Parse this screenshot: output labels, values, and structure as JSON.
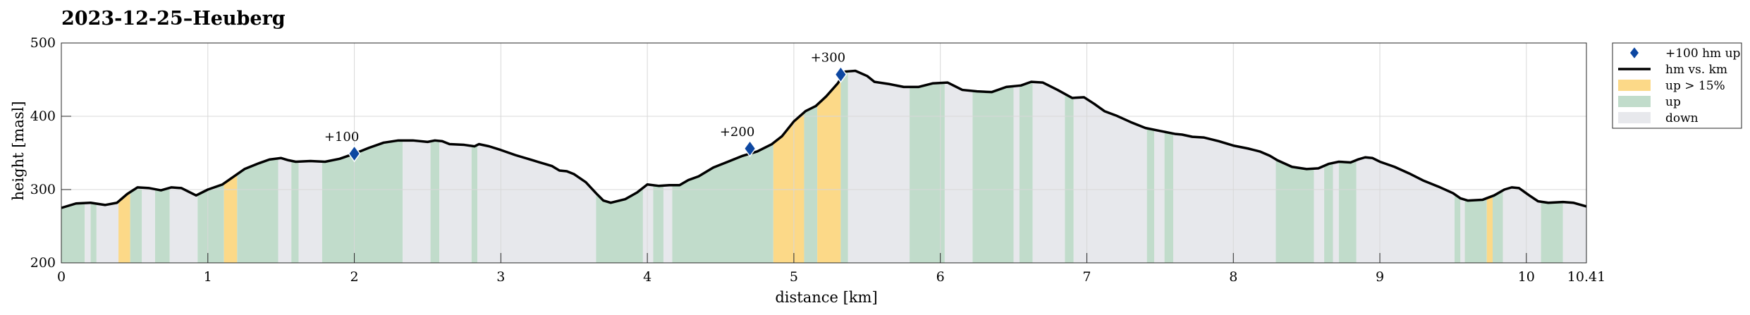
{
  "chart_data": {
    "type": "area",
    "title": "2023-12-25–Heuberg",
    "xlabel": "distance [km]",
    "ylabel": "height [masl]",
    "xlim": [
      0,
      10.41
    ],
    "ylim": [
      200,
      500
    ],
    "xticks": [
      0,
      1,
      2,
      3,
      4,
      5,
      6,
      7,
      8,
      9,
      10,
      10.41
    ],
    "yticks": [
      200,
      300,
      400,
      500
    ],
    "grid": true,
    "legend_position": "outside-top-right",
    "colors": {
      "line": "#000000",
      "marker": "#0d47a1",
      "steep": "#fcd988",
      "up": "#c1dccb",
      "down": "#e7e8ec"
    },
    "legend": [
      {
        "label": "+100 hm up",
        "kind": "marker"
      },
      {
        "label": "hm vs. km",
        "kind": "line"
      },
      {
        "label": "up > 15%",
        "kind": "steep"
      },
      {
        "label": "up",
        "kind": "up"
      },
      {
        "label": "down",
        "kind": "down"
      }
    ],
    "series": [
      {
        "label": "hm vs. km",
        "points": [
          [
            0,
            275
          ],
          [
            0.1,
            281
          ],
          [
            0.2,
            282
          ],
          [
            0.3,
            279
          ],
          [
            0.38,
            282
          ],
          [
            0.45,
            294
          ],
          [
            0.52,
            303
          ],
          [
            0.6,
            302
          ],
          [
            0.68,
            299
          ],
          [
            0.75,
            303
          ],
          [
            0.82,
            302
          ],
          [
            0.88,
            296
          ],
          [
            0.92,
            292
          ],
          [
            1.0,
            300
          ],
          [
            1.1,
            307
          ],
          [
            1.15,
            314
          ],
          [
            1.25,
            328
          ],
          [
            1.35,
            336
          ],
          [
            1.42,
            341
          ],
          [
            1.5,
            343
          ],
          [
            1.55,
            340
          ],
          [
            1.6,
            338
          ],
          [
            1.7,
            339
          ],
          [
            1.8,
            338
          ],
          [
            1.9,
            342
          ],
          [
            2.0,
            349
          ],
          [
            2.1,
            357
          ],
          [
            2.2,
            364
          ],
          [
            2.3,
            367
          ],
          [
            2.4,
            367
          ],
          [
            2.5,
            365
          ],
          [
            2.55,
            367
          ],
          [
            2.6,
            366
          ],
          [
            2.65,
            362
          ],
          [
            2.75,
            361
          ],
          [
            2.82,
            359
          ],
          [
            2.85,
            362
          ],
          [
            2.92,
            359
          ],
          [
            3.0,
            354
          ],
          [
            3.1,
            347
          ],
          [
            3.2,
            341
          ],
          [
            3.3,
            335
          ],
          [
            3.35,
            332
          ],
          [
            3.4,
            326
          ],
          [
            3.45,
            325
          ],
          [
            3.5,
            321
          ],
          [
            3.58,
            310
          ],
          [
            3.65,
            295
          ],
          [
            3.7,
            285
          ],
          [
            3.75,
            282
          ],
          [
            3.85,
            287
          ],
          [
            3.93,
            296
          ],
          [
            4.0,
            307
          ],
          [
            4.08,
            305
          ],
          [
            4.15,
            306
          ],
          [
            4.22,
            306
          ],
          [
            4.28,
            313
          ],
          [
            4.35,
            318
          ],
          [
            4.45,
            330
          ],
          [
            4.55,
            338
          ],
          [
            4.65,
            346
          ],
          [
            4.75,
            352
          ],
          [
            4.85,
            362
          ],
          [
            4.92,
            373
          ],
          [
            5.0,
            393
          ],
          [
            5.08,
            407
          ],
          [
            5.15,
            414
          ],
          [
            5.22,
            427
          ],
          [
            5.3,
            445
          ],
          [
            5.35,
            461
          ],
          [
            5.42,
            462
          ],
          [
            5.5,
            455
          ],
          [
            5.55,
            447
          ],
          [
            5.65,
            444
          ],
          [
            5.75,
            440
          ],
          [
            5.85,
            440
          ],
          [
            5.95,
            445
          ],
          [
            6.05,
            446
          ],
          [
            6.15,
            436
          ],
          [
            6.25,
            434
          ],
          [
            6.35,
            433
          ],
          [
            6.45,
            440
          ],
          [
            6.55,
            442
          ],
          [
            6.62,
            447
          ],
          [
            6.7,
            446
          ],
          [
            6.8,
            436
          ],
          [
            6.9,
            425
          ],
          [
            6.98,
            426
          ],
          [
            7.05,
            417
          ],
          [
            7.12,
            407
          ],
          [
            7.2,
            401
          ],
          [
            7.3,
            392
          ],
          [
            7.4,
            384
          ],
          [
            7.5,
            380
          ],
          [
            7.6,
            376
          ],
          [
            7.65,
            375
          ],
          [
            7.72,
            372
          ],
          [
            7.8,
            371
          ],
          [
            7.9,
            366
          ],
          [
            8.0,
            360
          ],
          [
            8.1,
            356
          ],
          [
            8.18,
            352
          ],
          [
            8.25,
            346
          ],
          [
            8.3,
            340
          ],
          [
            8.4,
            331
          ],
          [
            8.5,
            328
          ],
          [
            8.58,
            329
          ],
          [
            8.65,
            335
          ],
          [
            8.72,
            338
          ],
          [
            8.8,
            337
          ],
          [
            8.85,
            341
          ],
          [
            8.9,
            344
          ],
          [
            8.95,
            343
          ],
          [
            9.0,
            338
          ],
          [
            9.1,
            331
          ],
          [
            9.2,
            322
          ],
          [
            9.3,
            312
          ],
          [
            9.4,
            304
          ],
          [
            9.5,
            295
          ],
          [
            9.55,
            288
          ],
          [
            9.6,
            285
          ],
          [
            9.7,
            286
          ],
          [
            9.78,
            292
          ],
          [
            9.85,
            300
          ],
          [
            9.9,
            303
          ],
          [
            9.95,
            302
          ],
          [
            10.02,
            292
          ],
          [
            10.08,
            284
          ],
          [
            10.15,
            282
          ],
          [
            10.25,
            283
          ],
          [
            10.32,
            282
          ],
          [
            10.41,
            277
          ]
        ]
      }
    ],
    "bands": [
      {
        "x0": 0,
        "x1": 0.16,
        "kind": "up"
      },
      {
        "x0": 0.16,
        "x1": 0.2,
        "kind": "down"
      },
      {
        "x0": 0.2,
        "x1": 0.24,
        "kind": "up"
      },
      {
        "x0": 0.24,
        "x1": 0.39,
        "kind": "down"
      },
      {
        "x0": 0.39,
        "x1": 0.47,
        "kind": "steep"
      },
      {
        "x0": 0.47,
        "x1": 0.55,
        "kind": "up"
      },
      {
        "x0": 0.55,
        "x1": 0.64,
        "kind": "down"
      },
      {
        "x0": 0.64,
        "x1": 0.74,
        "kind": "up"
      },
      {
        "x0": 0.74,
        "x1": 0.93,
        "kind": "down"
      },
      {
        "x0": 0.93,
        "x1": 1.11,
        "kind": "up"
      },
      {
        "x0": 1.11,
        "x1": 1.2,
        "kind": "steep"
      },
      {
        "x0": 1.2,
        "x1": 1.48,
        "kind": "up"
      },
      {
        "x0": 1.48,
        "x1": 1.57,
        "kind": "down"
      },
      {
        "x0": 1.57,
        "x1": 1.62,
        "kind": "up"
      },
      {
        "x0": 1.62,
        "x1": 1.78,
        "kind": "down"
      },
      {
        "x0": 1.78,
        "x1": 2.33,
        "kind": "up"
      },
      {
        "x0": 2.33,
        "x1": 2.52,
        "kind": "down"
      },
      {
        "x0": 2.52,
        "x1": 2.58,
        "kind": "up"
      },
      {
        "x0": 2.58,
        "x1": 2.8,
        "kind": "down"
      },
      {
        "x0": 2.8,
        "x1": 2.84,
        "kind": "up"
      },
      {
        "x0": 2.84,
        "x1": 3.65,
        "kind": "down"
      },
      {
        "x0": 3.65,
        "x1": 3.97,
        "kind": "up"
      },
      {
        "x0": 3.97,
        "x1": 4.04,
        "kind": "down"
      },
      {
        "x0": 4.04,
        "x1": 4.11,
        "kind": "up"
      },
      {
        "x0": 4.11,
        "x1": 4.17,
        "kind": "down"
      },
      {
        "x0": 4.17,
        "x1": 4.86,
        "kind": "up"
      },
      {
        "x0": 4.86,
        "x1": 5.07,
        "kind": "steep"
      },
      {
        "x0": 5.07,
        "x1": 5.16,
        "kind": "up"
      },
      {
        "x0": 5.16,
        "x1": 5.32,
        "kind": "steep"
      },
      {
        "x0": 5.32,
        "x1": 5.37,
        "kind": "up"
      },
      {
        "x0": 5.37,
        "x1": 5.79,
        "kind": "down"
      },
      {
        "x0": 5.79,
        "x1": 6.03,
        "kind": "up"
      },
      {
        "x0": 6.03,
        "x1": 6.22,
        "kind": "down"
      },
      {
        "x0": 6.22,
        "x1": 6.5,
        "kind": "up"
      },
      {
        "x0": 6.5,
        "x1": 6.54,
        "kind": "down"
      },
      {
        "x0": 6.54,
        "x1": 6.63,
        "kind": "up"
      },
      {
        "x0": 6.63,
        "x1": 6.85,
        "kind": "down"
      },
      {
        "x0": 6.85,
        "x1": 6.91,
        "kind": "up"
      },
      {
        "x0": 6.91,
        "x1": 7.41,
        "kind": "down"
      },
      {
        "x0": 7.41,
        "x1": 7.46,
        "kind": "up"
      },
      {
        "x0": 7.46,
        "x1": 7.53,
        "kind": "down"
      },
      {
        "x0": 7.53,
        "x1": 7.59,
        "kind": "up"
      },
      {
        "x0": 7.59,
        "x1": 8.29,
        "kind": "down"
      },
      {
        "x0": 8.29,
        "x1": 8.55,
        "kind": "up"
      },
      {
        "x0": 8.55,
        "x1": 8.62,
        "kind": "down"
      },
      {
        "x0": 8.62,
        "x1": 8.68,
        "kind": "up"
      },
      {
        "x0": 8.68,
        "x1": 8.72,
        "kind": "down"
      },
      {
        "x0": 8.72,
        "x1": 8.84,
        "kind": "up"
      },
      {
        "x0": 8.84,
        "x1": 9.51,
        "kind": "down"
      },
      {
        "x0": 9.51,
        "x1": 9.55,
        "kind": "up"
      },
      {
        "x0": 9.55,
        "x1": 9.58,
        "kind": "down"
      },
      {
        "x0": 9.58,
        "x1": 9.73,
        "kind": "up"
      },
      {
        "x0": 9.73,
        "x1": 9.77,
        "kind": "steep"
      },
      {
        "x0": 9.77,
        "x1": 9.84,
        "kind": "up"
      },
      {
        "x0": 9.84,
        "x1": 10.1,
        "kind": "down"
      },
      {
        "x0": 10.1,
        "x1": 10.25,
        "kind": "up"
      },
      {
        "x0": 10.25,
        "x1": 10.41,
        "kind": "down"
      }
    ],
    "markers": [
      {
        "x": 2.0,
        "y": 349,
        "label": "+100"
      },
      {
        "x": 4.7,
        "y": 356,
        "label": "+200"
      },
      {
        "x": 5.32,
        "y": 457,
        "label": "+300"
      }
    ]
  }
}
